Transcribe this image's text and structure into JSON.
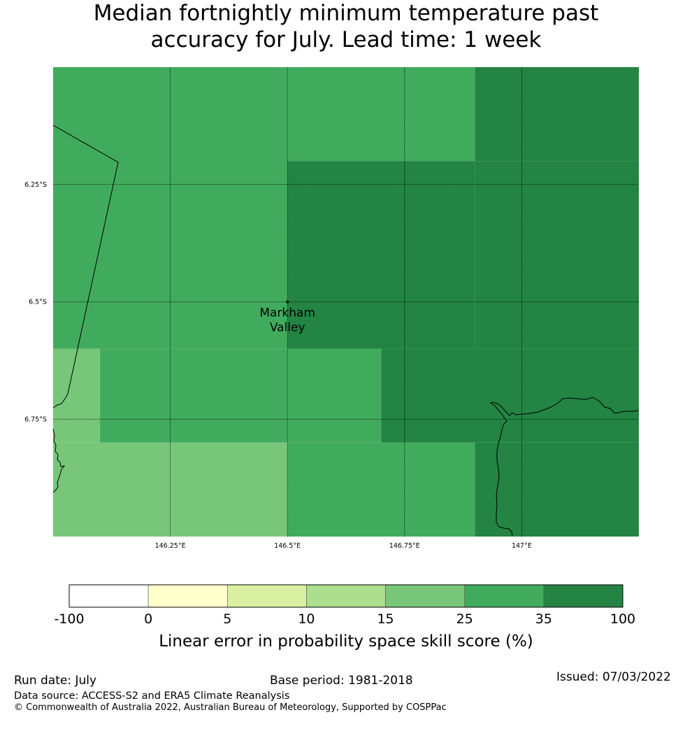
{
  "title": {
    "line1": "Median fortnightly minimum temperature past",
    "line2": "accuracy for July. Lead time: 1 week"
  },
  "map": {
    "lon_range": [
      146.0,
      147.25
    ],
    "lat_range": [
      -6.0,
      -7.0
    ],
    "lon_ticks": [
      {
        "value": 146.25,
        "label": "146.25°E"
      },
      {
        "value": 146.5,
        "label": "146.5°E"
      },
      {
        "value": 146.75,
        "label": "146.75°E"
      },
      {
        "value": 147.0,
        "label": "147°E"
      }
    ],
    "lat_ticks": [
      {
        "value": -6.25,
        "label": "6.25°S"
      },
      {
        "value": -6.5,
        "label": "6.5°S"
      },
      {
        "value": -6.75,
        "label": "6.75°S"
      }
    ],
    "location": {
      "name_line1": "Markham",
      "name_line2": "Valley",
      "lon": 146.5,
      "lat": -6.5
    },
    "cells": [
      {
        "lon": [
          146.0,
          146.5
        ],
        "lat": [
          -6.0,
          -6.6
        ],
        "cls": 5
      },
      {
        "lon": [
          146.5,
          146.9
        ],
        "lat": [
          -6.0,
          -6.2
        ],
        "cls": 5
      },
      {
        "lon": [
          146.9,
          147.25
        ],
        "lat": [
          -6.0,
          -6.2
        ],
        "cls": 6
      },
      {
        "lon": [
          146.5,
          146.9
        ],
        "lat": [
          -6.2,
          -6.6
        ],
        "cls": 6
      },
      {
        "lon": [
          146.9,
          147.25
        ],
        "lat": [
          -6.2,
          -6.6
        ],
        "cls": 6
      },
      {
        "lon": [
          146.0,
          146.1
        ],
        "lat": [
          -6.6,
          -6.8
        ],
        "cls": 4
      },
      {
        "lon": [
          146.1,
          146.5
        ],
        "lat": [
          -6.6,
          -6.8
        ],
        "cls": 5
      },
      {
        "lon": [
          146.5,
          146.7
        ],
        "lat": [
          -6.6,
          -6.8
        ],
        "cls": 5
      },
      {
        "lon": [
          146.7,
          147.25
        ],
        "lat": [
          -6.6,
          -6.8
        ],
        "cls": 6
      },
      {
        "lon": [
          146.0,
          146.5
        ],
        "lat": [
          -6.8,
          -7.0
        ],
        "cls": 4
      },
      {
        "lon": [
          146.5,
          146.9
        ],
        "lat": [
          -6.8,
          -7.0
        ],
        "cls": 5
      },
      {
        "lon": [
          146.9,
          147.25
        ],
        "lat": [
          -6.8,
          -7.0
        ],
        "cls": 6
      }
    ]
  },
  "colorbar": {
    "labels": [
      "-100",
      "0",
      "5",
      "10",
      "15",
      "25",
      "35",
      "100"
    ],
    "colors": [
      "#ffffff",
      "#ffffcc",
      "#d9f0a3",
      "#addd8e",
      "#78c679",
      "#41ab5d",
      "#238443"
    ],
    "title": "Linear error in probability space skill score (%)"
  },
  "footer": {
    "run_date": "Run date: July",
    "base_period": "Base period: 1981-2018",
    "issued": "Issued: 07/03/2022",
    "data_source": "Data source: ACCESS-S2 and ERA5 Climate Reanalysis",
    "copyright": "© Commonwealth of Australia 2022, Australian Bureau of Meteorology, Supported by COSPPac"
  }
}
